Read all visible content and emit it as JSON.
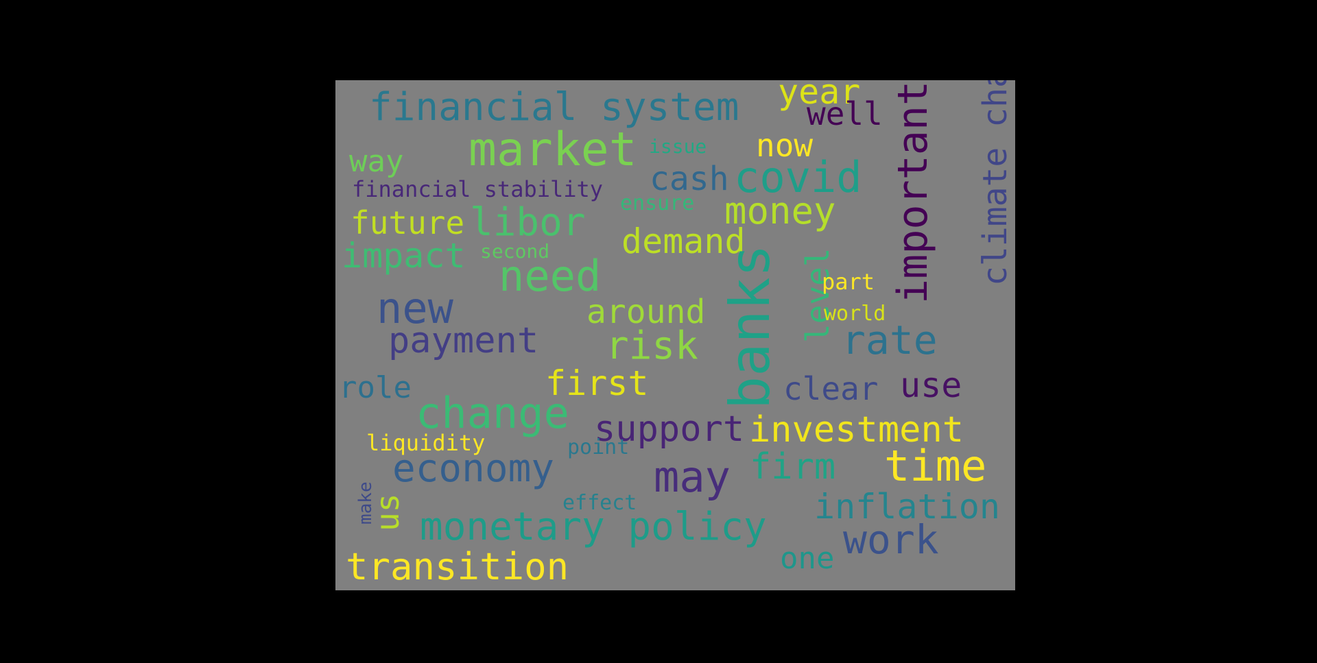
{
  "background_color": "#000000",
  "cloud_background_color": "#808080",
  "words": [
    {
      "text": "financial system",
      "color": "#2a788e"
    },
    {
      "text": "year",
      "color": "#dde318"
    },
    {
      "text": "well",
      "color": "#440154"
    },
    {
      "text": "important",
      "color": "#440154"
    },
    {
      "text": "climate change",
      "color": "#404688"
    },
    {
      "text": "market",
      "color": "#7ad151"
    },
    {
      "text": "issue",
      "color": "#22a884"
    },
    {
      "text": "now",
      "color": "#fde725"
    },
    {
      "text": "way",
      "color": "#6ece58"
    },
    {
      "text": "cash",
      "color": "#31688e"
    },
    {
      "text": "covid",
      "color": "#1f9e89"
    },
    {
      "text": "financial stability",
      "color": "#482878"
    },
    {
      "text": "ensure",
      "color": "#35b779"
    },
    {
      "text": "money",
      "color": "#b5de2b"
    },
    {
      "text": "future",
      "color": "#c2df23"
    },
    {
      "text": "libor",
      "color": "#4ac16d"
    },
    {
      "text": "demand",
      "color": "#bddf26"
    },
    {
      "text": "second",
      "color": "#5ec962"
    },
    {
      "text": "impact",
      "color": "#3fbc73"
    },
    {
      "text": "need",
      "color": "#54c568"
    },
    {
      "text": "banks",
      "color": "#1fa187"
    },
    {
      "text": "level",
      "color": "#35b779"
    },
    {
      "text": "part",
      "color": "#fde725"
    },
    {
      "text": "new",
      "color": "#3b528b"
    },
    {
      "text": "around",
      "color": "#a0da39"
    },
    {
      "text": "world",
      "color": "#d8e219"
    },
    {
      "text": "payment",
      "color": "#433e85"
    },
    {
      "text": "risk",
      "color": "#8fd744"
    },
    {
      "text": "rate",
      "color": "#2c728e"
    },
    {
      "text": "role",
      "color": "#2d708e"
    },
    {
      "text": "first",
      "color": "#e5e419"
    },
    {
      "text": "clear",
      "color": "#3e4a89"
    },
    {
      "text": "use",
      "color": "#471063"
    },
    {
      "text": "change",
      "color": "#3bbb75"
    },
    {
      "text": "support",
      "color": "#482475"
    },
    {
      "text": "investment",
      "color": "#f1e51d"
    },
    {
      "text": "liquidity",
      "color": "#fde725"
    },
    {
      "text": "point",
      "color": "#2a788e"
    },
    {
      "text": "economy",
      "color": "#355f8d"
    },
    {
      "text": "may",
      "color": "#472d7b"
    },
    {
      "text": "firm",
      "color": "#20a386"
    },
    {
      "text": "time",
      "color": "#fde725"
    },
    {
      "text": "make",
      "color": "#3e4a89"
    },
    {
      "text": "us",
      "color": "#b8de29"
    },
    {
      "text": "effect",
      "color": "#26828e"
    },
    {
      "text": "inflation",
      "color": "#25858e"
    },
    {
      "text": "monetary policy",
      "color": "#1e9c89"
    },
    {
      "text": "work",
      "color": "#3b528b"
    },
    {
      "text": "one",
      "color": "#1f968b"
    },
    {
      "text": "transition",
      "color": "#fde725"
    }
  ]
}
